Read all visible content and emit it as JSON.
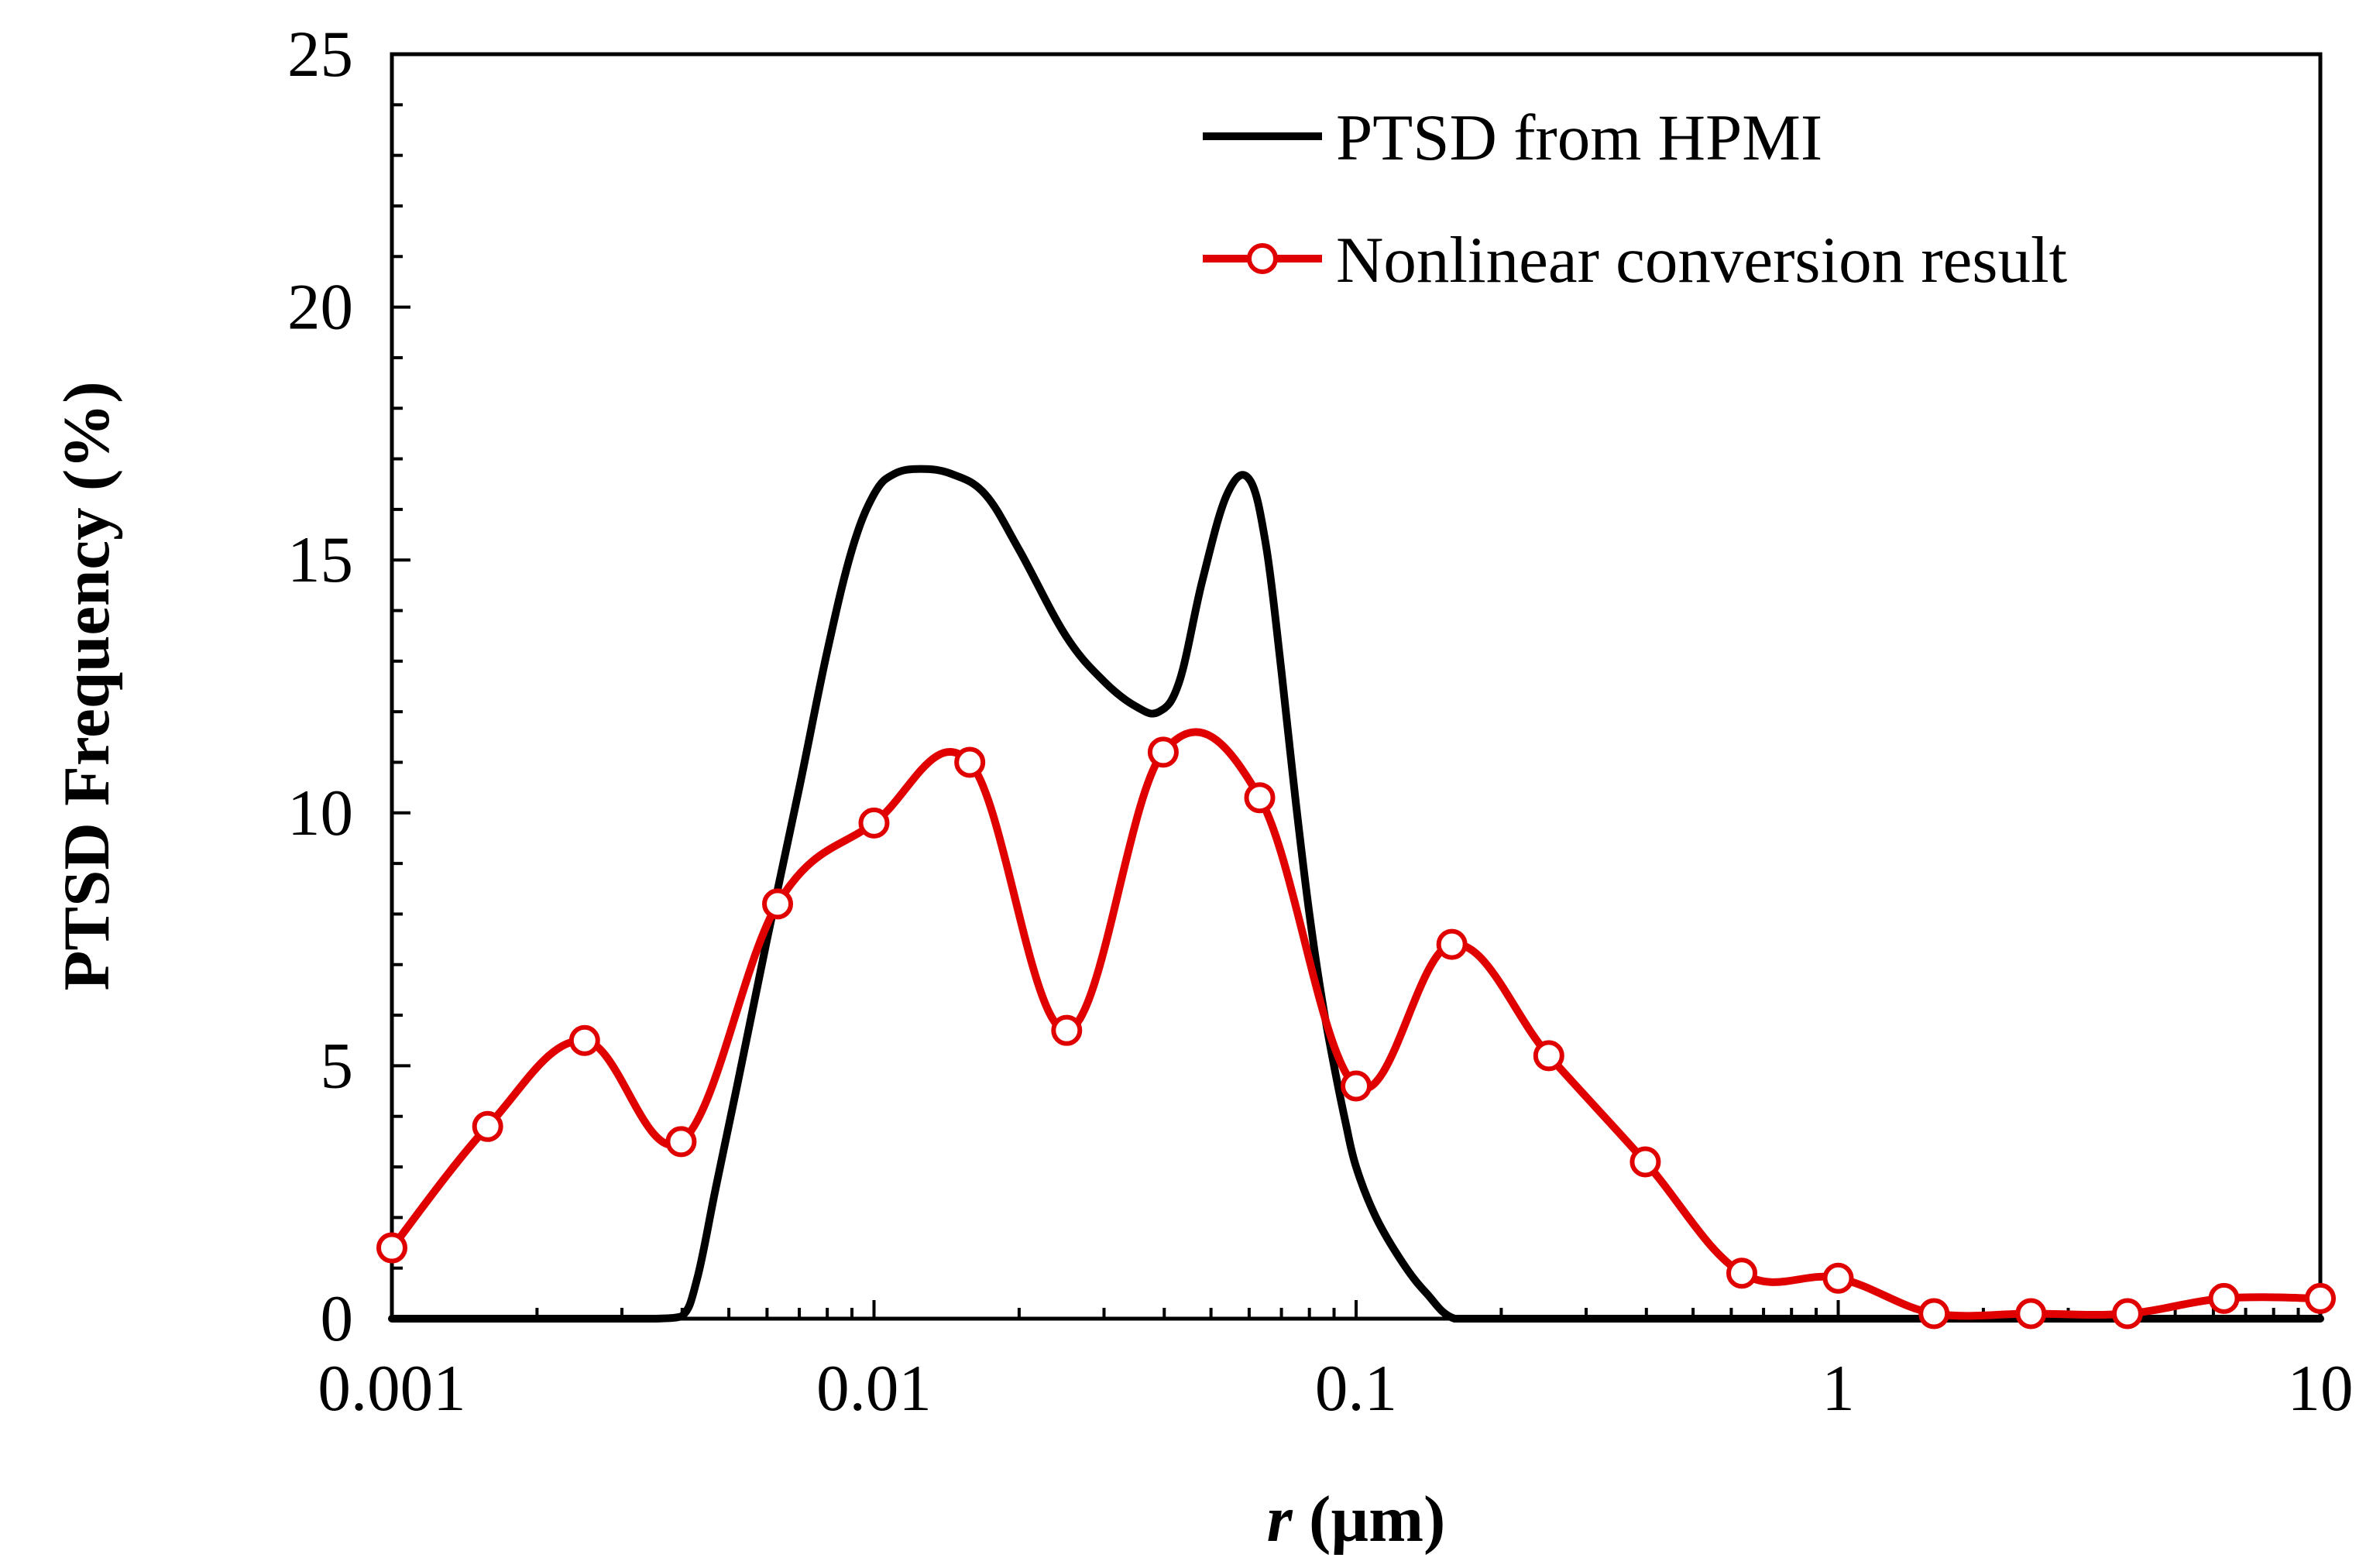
{
  "chart_data": {
    "type": "line",
    "title": "",
    "xlabel_var": "r",
    "xlabel_unit": " (µm)",
    "ylabel": "PTSD Frequency (%)",
    "xscale": "log",
    "xlim": [
      0.001,
      10
    ],
    "ylim": [
      0,
      25
    ],
    "x_ticks": [
      0.001,
      0.01,
      0.1,
      1,
      10
    ],
    "x_tick_labels": [
      "0.001",
      "0.01",
      "0.1",
      "1",
      "10"
    ],
    "y_ticks": [
      0,
      5,
      10,
      15,
      20,
      25
    ],
    "y_tick_labels": [
      "0",
      "5",
      "10",
      "15",
      "20",
      "25"
    ],
    "y_minor_step": 1,
    "legend_position": "top-right",
    "series": [
      {
        "name": "PTSD from HPMI",
        "color": "#000000",
        "markers": false,
        "x": [
          0.001,
          0.0015,
          0.0025,
          0.003,
          0.0035,
          0.004,
          0.0043,
          0.0047,
          0.0052,
          0.006,
          0.007,
          0.008,
          0.009,
          0.01,
          0.011,
          0.0125,
          0.0145,
          0.017,
          0.02,
          0.025,
          0.03,
          0.035,
          0.039,
          0.043,
          0.048,
          0.054,
          0.06,
          0.065,
          0.07,
          0.075,
          0.08,
          0.085,
          0.09,
          0.095,
          0.1,
          0.11,
          0.125,
          0.14,
          0.16,
          0.2,
          0.3,
          0.5,
          1,
          10
        ],
        "y": [
          0,
          0,
          0,
          0,
          0,
          0.05,
          0.8,
          2.6,
          4.6,
          7.5,
          10.5,
          13.2,
          15.2,
          16.3,
          16.7,
          16.8,
          16.7,
          16.3,
          15.2,
          13.5,
          12.6,
          12.1,
          12.0,
          12.6,
          14.6,
          16.3,
          16.6,
          15.3,
          12.8,
          10.2,
          8.0,
          6.3,
          5.0,
          3.9,
          3.0,
          2.0,
          1.1,
          0.5,
          0,
          0,
          0,
          0,
          0,
          0
        ]
      },
      {
        "name": "Nonlinear conversion result",
        "color": "#e00000",
        "markers": true,
        "x": [
          0.001,
          0.00158,
          0.00251,
          0.00398,
          0.00631,
          0.01,
          0.0158,
          0.0251,
          0.0398,
          0.0631,
          0.1,
          0.158,
          0.251,
          0.398,
          0.631,
          1,
          1.58,
          2.51,
          3.98,
          6.31,
          10
        ],
        "y": [
          1.4,
          3.8,
          5.5,
          3.5,
          8.2,
          9.8,
          11.0,
          5.7,
          11.2,
          10.3,
          4.6,
          7.4,
          5.2,
          3.1,
          0.9,
          0.8,
          0.1,
          0.1,
          0.1,
          0.4,
          0.4
        ]
      }
    ]
  }
}
